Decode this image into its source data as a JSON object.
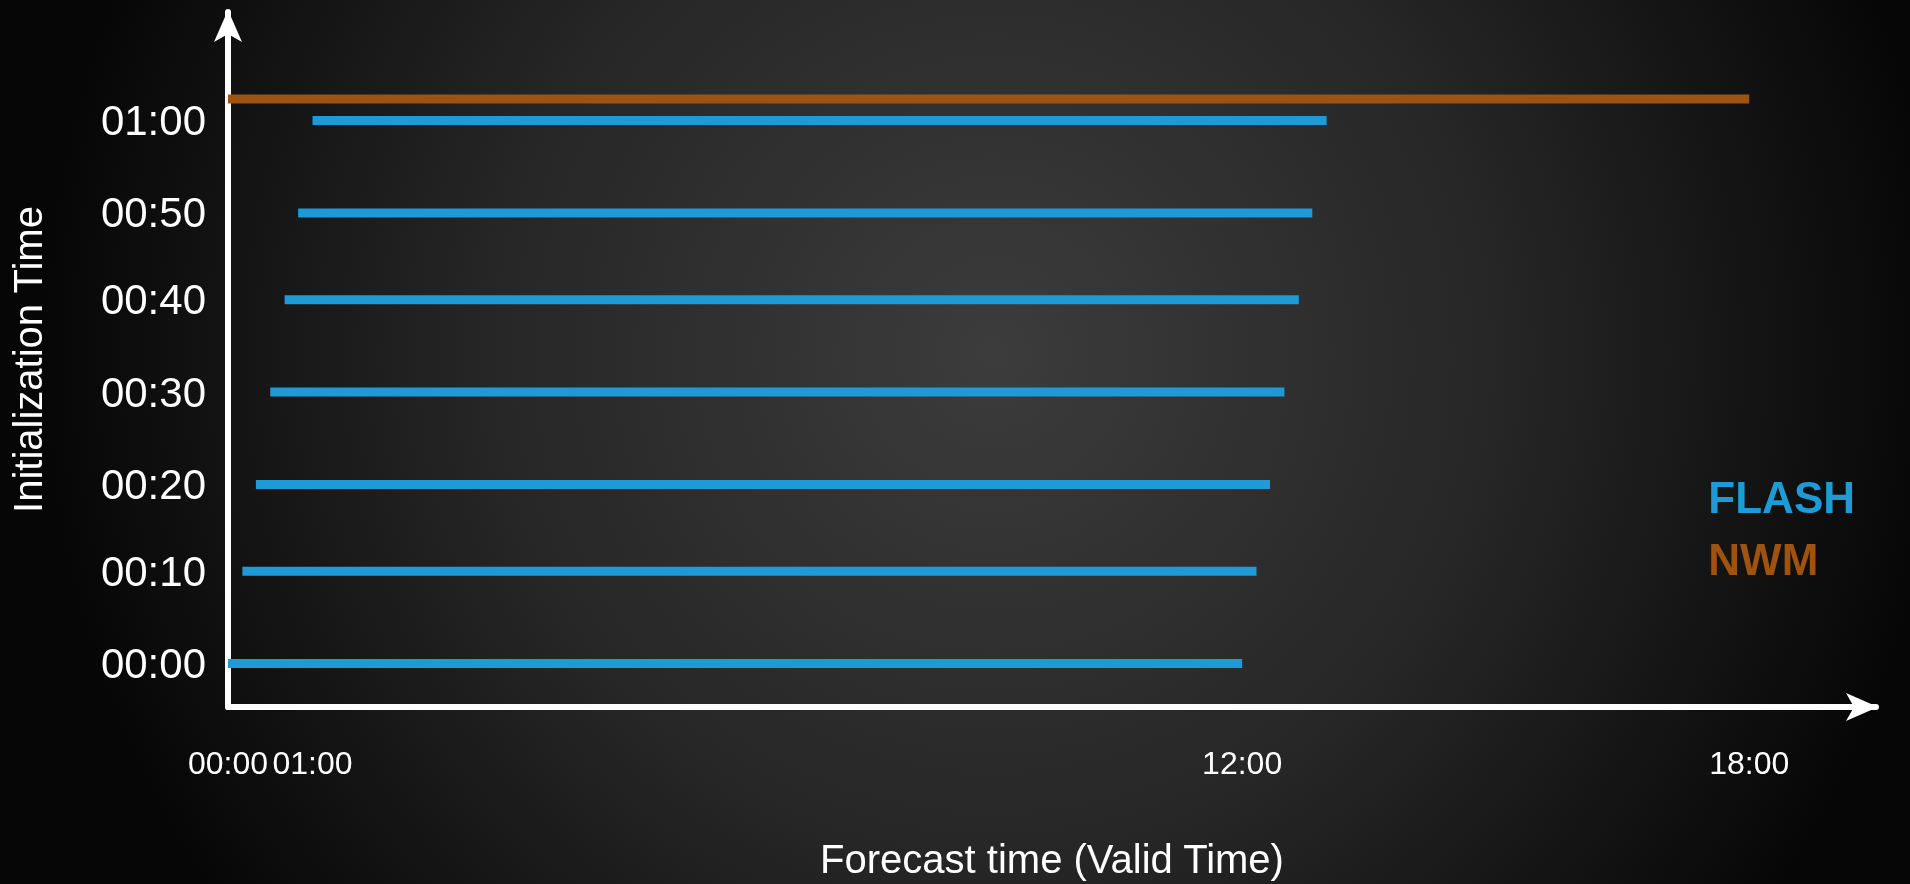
{
  "chart_data": {
    "type": "line",
    "xlabel": "Forecast time (Valid Time)",
    "ylabel": "Initialization Time",
    "xlim": [
      0,
      19.5
    ],
    "xticks": [
      {
        "value": 0,
        "label": "00:00"
      },
      {
        "value": 1,
        "label": "01:00"
      },
      {
        "value": 12,
        "label": "12:00"
      },
      {
        "value": 18,
        "label": "18:00"
      }
    ],
    "ylim": [
      -0.08,
      1.2
    ],
    "yticks": [
      {
        "value": 0,
        "label": "00:00"
      },
      {
        "value": 0.17,
        "label": "00:10"
      },
      {
        "value": 0.33,
        "label": "00:20"
      },
      {
        "value": 0.5,
        "label": "00:30"
      },
      {
        "value": 0.67,
        "label": "00:40"
      },
      {
        "value": 0.83,
        "label": "00:50"
      },
      {
        "value": 1,
        "label": "01:00"
      }
    ],
    "series": [
      {
        "name": "FLASH",
        "color": "#1e9bd7",
        "x": [
          0,
          12,
          null,
          0.17,
          12.17,
          null,
          0.33,
          12.33,
          null,
          0.5,
          12.5,
          null,
          0.67,
          12.67,
          null,
          0.83,
          12.83,
          null,
          1,
          13
        ],
        "values": [
          0,
          0,
          null,
          0.17,
          0.17,
          null,
          0.33,
          0.33,
          null,
          0.5,
          0.5,
          null,
          0.67,
          0.67,
          null,
          0.83,
          0.83,
          null,
          1,
          1
        ]
      },
      {
        "name": "NWM",
        "color": "#a0520f",
        "x": [
          0,
          18
        ],
        "values": [
          1.04,
          1.04
        ]
      }
    ],
    "grid": false,
    "legend": "right",
    "marker": "none",
    "line_style": "solid"
  }
}
